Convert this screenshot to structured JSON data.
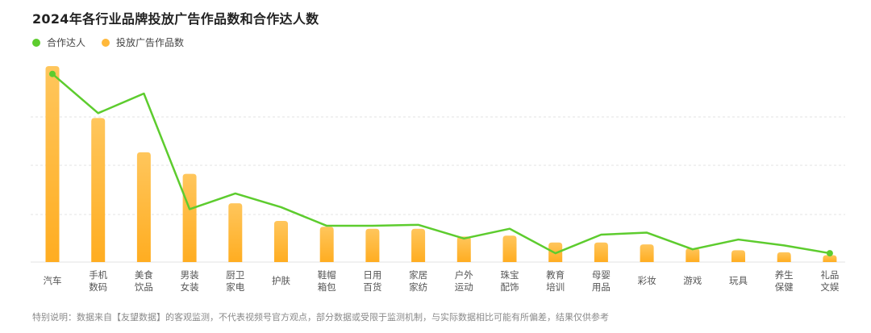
{
  "title": "2024年各行业品牌投放广告作品数和合作达人数",
  "legend": {
    "line_label": "合作达人",
    "bar_label": "投放广告作品数"
  },
  "colors": {
    "line": "#5dcc2e",
    "bar_top": "#ffc65c",
    "bar_bottom": "#ffad21",
    "grid": "#e3e3e3"
  },
  "footnote": "特别说明：数据来自【友望数据】的客观监测，不代表视频号官方观点，部分数据或受限于监测机制，与实际数据相比可能有所偏差，结果仅供参考",
  "chart_data": {
    "type": "bar",
    "grid": true,
    "y_axis_labels_shown": false,
    "ylim": [
      0,
      100
    ],
    "categories": [
      [
        "汽车"
      ],
      [
        "手机",
        "数码"
      ],
      [
        "美食",
        "饮品"
      ],
      [
        "男装",
        "女装"
      ],
      [
        "厨卫",
        "家电"
      ],
      [
        "护肤"
      ],
      [
        "鞋帽",
        "箱包"
      ],
      [
        "日用",
        "百货"
      ],
      [
        "家居",
        "家纺"
      ],
      [
        "户外",
        "运动"
      ],
      [
        "珠宝",
        "配饰"
      ],
      [
        "教育",
        "培训"
      ],
      [
        "母婴",
        "用品"
      ],
      [
        "彩妆"
      ],
      [
        "游戏"
      ],
      [
        "玩具"
      ],
      [
        "养生",
        "保健"
      ],
      [
        "礼品",
        "文娱"
      ]
    ],
    "series": [
      {
        "name": "投放广告作品数",
        "type": "bar",
        "values": [
          100,
          73.5,
          56,
          45,
          30,
          21,
          18,
          17,
          17,
          13,
          13.5,
          10,
          10,
          9,
          7,
          6,
          5,
          3.5
        ]
      },
      {
        "name": "合作达人",
        "type": "line",
        "values": [
          96,
          76,
          86,
          27,
          35,
          28,
          18.5,
          18.5,
          19,
          12,
          17,
          4.5,
          14,
          15,
          6.5,
          11.5,
          8.5,
          4.5
        ]
      }
    ]
  }
}
